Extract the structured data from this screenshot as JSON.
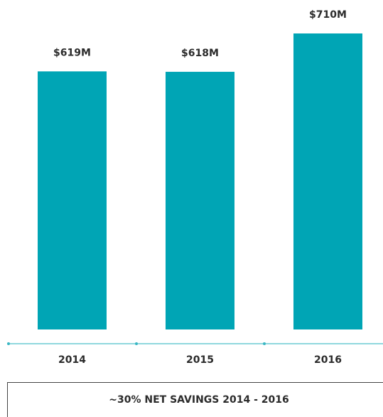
{
  "chart_data": {
    "type": "bar",
    "categories": [
      "2014",
      "2015",
      "2016"
    ],
    "values": [
      619,
      618,
      710
    ],
    "value_labels": [
      "$619M",
      "$618M",
      "$710M"
    ],
    "color": "#00a5b5",
    "annotation": "~30% NET SAVINGS 2014 - 2016"
  }
}
